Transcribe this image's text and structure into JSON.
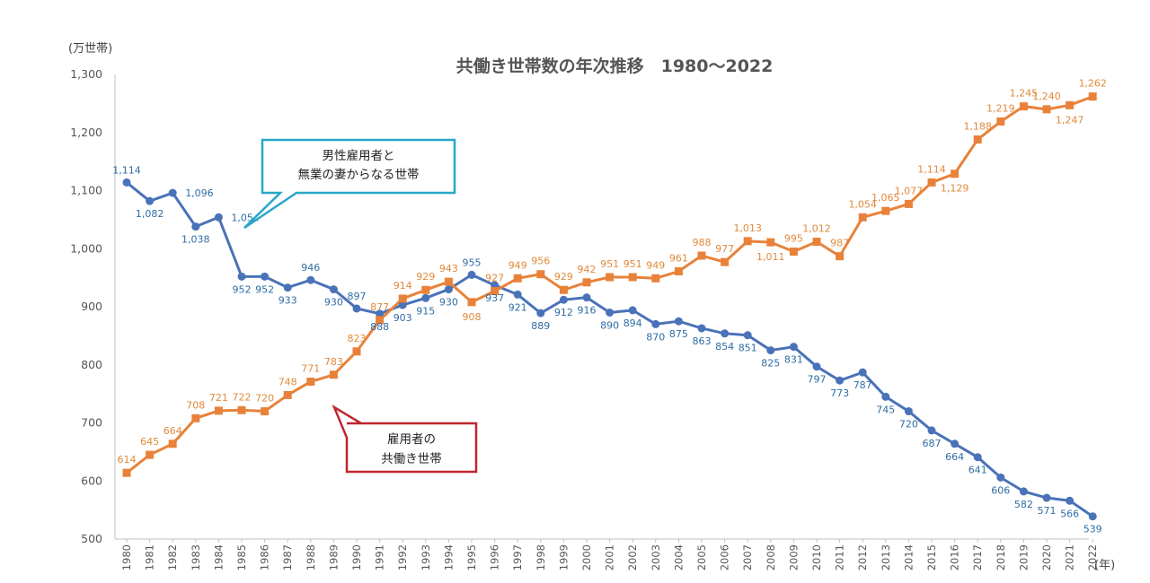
{
  "chart_data": {
    "type": "line",
    "title": "共働き世帯数の年次推移　1980〜2022",
    "y_unit_label": "(万世帯)",
    "x_unit_label": "(年)",
    "ylim": [
      500,
      1300
    ],
    "yticks": [
      "500",
      "600",
      "700",
      "800",
      "900",
      "1,000",
      "1,100",
      "1,200",
      "1,300"
    ],
    "x": [
      1980,
      1981,
      1982,
      1983,
      1984,
      1985,
      1986,
      1987,
      1988,
      1989,
      1990,
      1991,
      1992,
      1993,
      1994,
      1995,
      1996,
      1997,
      1998,
      1999,
      2000,
      2001,
      2002,
      2003,
      2004,
      2005,
      2006,
      2007,
      2008,
      2009,
      2010,
      2011,
      2012,
      2013,
      2014,
      2015,
      2016,
      2017,
      2018,
      2019,
      2020,
      2021,
      2022
    ],
    "grid": false,
    "series": [
      {
        "name": "男性雇用者と\n無業の妻からなる世帯",
        "name_lines": [
          "男性雇用者と",
          "無業の妻からなる世帯"
        ],
        "color": "#4a72b8",
        "label_color": "#2e6da4",
        "marker": "circle",
        "values": [
          1114,
          1082,
          1096,
          1038,
          1054,
          952,
          952,
          933,
          946,
          930,
          897,
          888,
          903,
          915,
          930,
          955,
          937,
          921,
          889,
          912,
          916,
          890,
          894,
          870,
          875,
          863,
          854,
          851,
          825,
          831,
          797,
          773,
          787,
          745,
          720,
          687,
          664,
          641,
          606,
          582,
          571,
          566,
          539
        ],
        "labels": [
          "1,114",
          "1,082",
          "1,096",
          "1,038",
          "1,054",
          "952",
          "952",
          "933",
          "946",
          "930",
          "897",
          "888",
          "903",
          "915",
          "930",
          "955",
          "937",
          "921",
          "889",
          "912",
          "916",
          "890",
          "894",
          "870",
          "875",
          "863",
          "854",
          "851",
          "825",
          "831",
          "797",
          "773",
          "787",
          "745",
          "720",
          "687",
          "664",
          "641",
          "606",
          "582",
          "571",
          "566",
          "539"
        ]
      },
      {
        "name": "雇用者の\n共働き世帯",
        "name_lines": [
          "雇用者の",
          "共働き世帯"
        ],
        "color": "#e8823a",
        "label_color": "#e08a3c",
        "marker": "square",
        "values": [
          614,
          645,
          664,
          708,
          721,
          722,
          720,
          748,
          771,
          783,
          823,
          877,
          914,
          929,
          943,
          908,
          927,
          949,
          956,
          929,
          942,
          951,
          951,
          949,
          961,
          988,
          977,
          1013,
          1011,
          995,
          1012,
          987,
          1054,
          1065,
          1077,
          1114,
          1129,
          1188,
          1219,
          1245,
          1240,
          1247,
          1262
        ],
        "labels": [
          "614",
          "645",
          "664",
          "708",
          "721",
          "722",
          "720",
          "748",
          "771",
          "783",
          "823",
          "877",
          "914",
          "929",
          "943",
          "908",
          "927",
          "949",
          "956",
          "929",
          "942",
          "951",
          "951",
          "949",
          "961",
          "988",
          "977",
          "1,013",
          "1,011",
          "995",
          "1,012",
          "987",
          "1,054",
          "1,065",
          "1,077",
          "1,114",
          "1,129",
          "1,188",
          "1,219",
          "1,245",
          "1,240",
          "1,247",
          "1,262"
        ]
      }
    ]
  }
}
